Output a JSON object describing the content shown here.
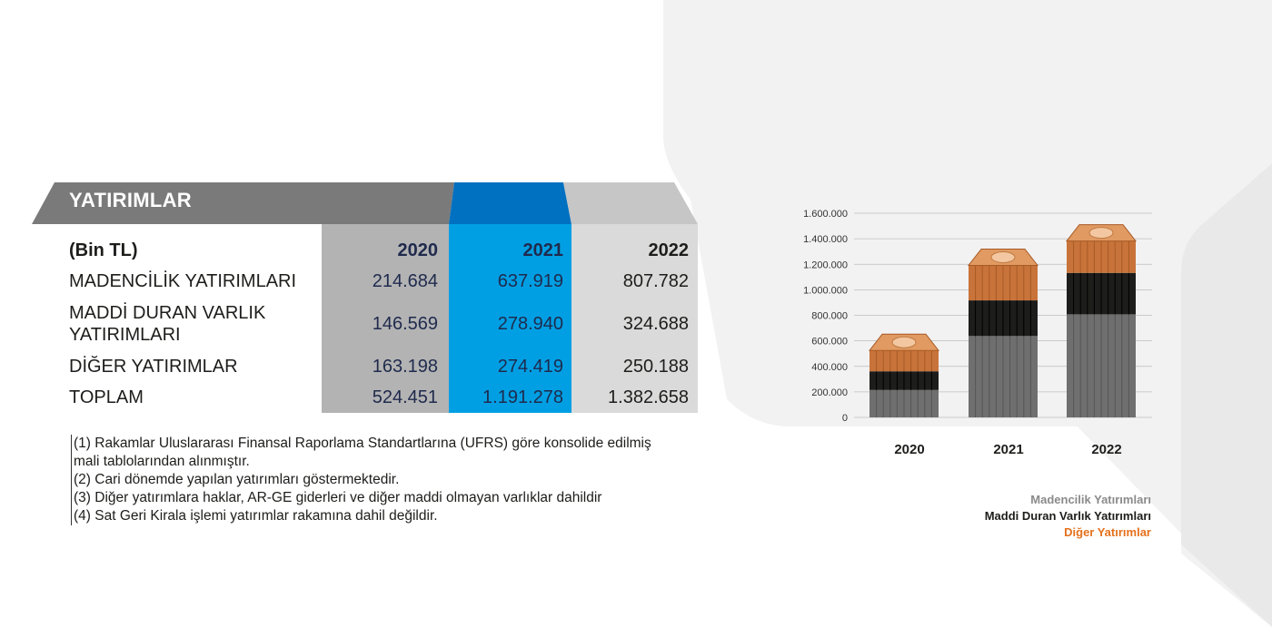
{
  "table": {
    "title": "YATIRIMLAR",
    "unit_label": "(Bin TL)",
    "years": [
      "2020",
      "2021",
      "2022"
    ],
    "rows": [
      {
        "label": "MADENCİLİK YATIRIMLARI",
        "values": [
          "214.684",
          "637.919",
          "807.782"
        ]
      },
      {
        "label_line1": "MADDİ DURAN VARLIK",
        "label_line2": "YATIRIMLARI",
        "values": [
          "146.569",
          "278.940",
          "324.688"
        ]
      },
      {
        "label": "DİĞER YATIRIMLAR",
        "values": [
          "163.198",
          "274.419",
          "250.188"
        ]
      },
      {
        "label": "TOPLAM",
        "values": [
          "524.451",
          "1.191.278",
          "1.382.658"
        ]
      }
    ]
  },
  "notes": [
    "(1) Rakamlar Uluslararası Finansal Raporlama Standartlarına (UFRS) göre konsolide edilmiş",
    "mali tablolarından alınmıştır.",
    "(2) Cari dönemde yapılan yatırımları göstermektedir.",
    "(3) Diğer yatırımlara haklar, AR-GE giderleri ve diğer maddi olmayan varlıklar dahildir",
    "(4) Sat Geri Kirala işlemi yatırımlar rakamına dahil değildir."
  ],
  "colors": {
    "madencilik": "#6f6f6f",
    "maddi": "#1d1d1b",
    "diger": "#c8733a",
    "accent_blue": "#009fe3",
    "header_gray": "#7a7a7a"
  },
  "chart_data": {
    "type": "bar",
    "stacked": true,
    "categories": [
      "2020",
      "2021",
      "2022"
    ],
    "series": [
      {
        "name": "Madencilik Yatırımları",
        "values": [
          214684,
          637919,
          807782
        ]
      },
      {
        "name": "Maddi Duran Varlık Yatırımları",
        "values": [
          146569,
          278940,
          324688
        ]
      },
      {
        "name": "Diğer Yatırımlar",
        "values": [
          163198,
          274419,
          250188
        ]
      }
    ],
    "ylim": [
      0,
      1600000
    ],
    "yticks": [
      0,
      200000,
      400000,
      600000,
      800000,
      1000000,
      1200000,
      1400000,
      1600000
    ],
    "ytick_labels": [
      "0",
      "200.000",
      "400.000",
      "600.000",
      "800.000",
      "1.000.000",
      "1.200.000",
      "1.400.000",
      "1.600.000"
    ],
    "grid": true,
    "legend_position": "bottom-right"
  }
}
